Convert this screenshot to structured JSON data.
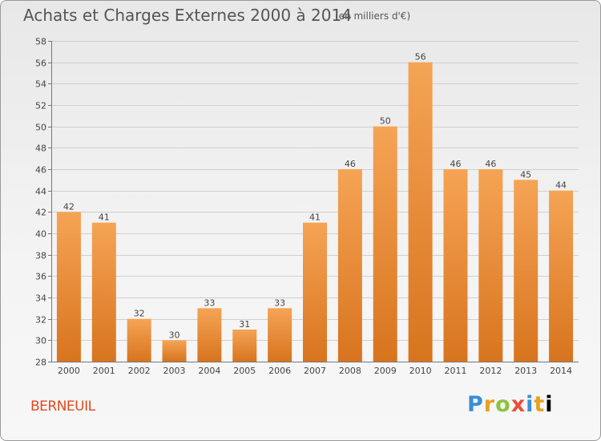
{
  "chart_data": {
    "type": "bar",
    "title": "Achats et Charges Externes 2000 à 2014",
    "subtitle": "(en milliers d'€)",
    "categories": [
      "2000",
      "2001",
      "2002",
      "2003",
      "2004",
      "2005",
      "2006",
      "2007",
      "2008",
      "2009",
      "2010",
      "2011",
      "2012",
      "2013",
      "2014"
    ],
    "values": [
      42,
      41,
      32,
      30,
      33,
      31,
      33,
      41,
      46,
      50,
      56,
      46,
      46,
      45,
      44
    ],
    "ylim": [
      28,
      58
    ],
    "yticks": [
      28,
      30,
      32,
      34,
      36,
      38,
      40,
      42,
      44,
      46,
      48,
      50,
      52,
      54,
      56,
      58
    ],
    "grid": true,
    "bar_color_top": "#f5a455",
    "bar_color_bottom": "#d8741e"
  },
  "footer": {
    "commune": "BERNEUIL",
    "logo_letters": [
      "P",
      "r",
      "o",
      "x",
      "i",
      "t",
      "i"
    ]
  }
}
